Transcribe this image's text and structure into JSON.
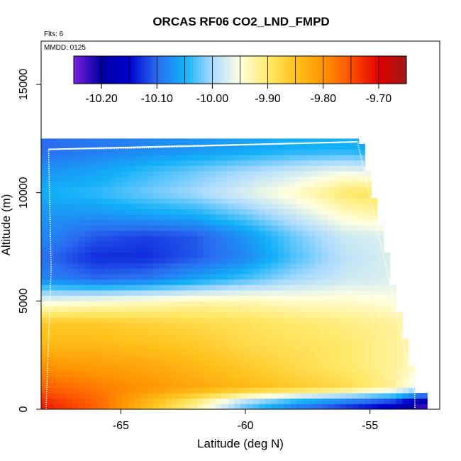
{
  "chart_data": {
    "type": "heatmap",
    "title": "ORCAS RF06 CO2_LND_FMPD",
    "annotations": [
      "Flts: 6",
      "MMDD: 0125"
    ],
    "xlabel": "Latitude (deg N)",
    "ylabel": "Altitude (m)",
    "xlim": [
      -68.2,
      -52.2
    ],
    "ylim": [
      0,
      17000
    ],
    "xticks": [
      -65,
      -60,
      -55
    ],
    "xtick_labels": [
      "-65",
      "-60",
      "-55"
    ],
    "yticks": [
      0,
      5000,
      10000,
      15000
    ],
    "ytick_labels": [
      "0",
      "5000",
      "10000",
      "15000"
    ],
    "colorbar": {
      "placement": "top-inside",
      "range": [
        -10.25,
        -9.65
      ],
      "ticks": [
        -10.2,
        -10.1,
        -10.0,
        -9.9,
        -9.8,
        -9.7
      ],
      "tick_labels": [
        "-10.20",
        "-10.10",
        "-10.00",
        "-9.90",
        "-9.80",
        "-9.70"
      ],
      "colors": [
        "#7a1fe0",
        "#0000a0",
        "#0000d0",
        "#2a6cf0",
        "#12b0f8",
        "#a9daff",
        "#ffffe0",
        "#ffe96a",
        "#ffc21a",
        "#ff9400",
        "#ff5200",
        "#e00000",
        "#a01818"
      ]
    },
    "field": {
      "description_rows": "altitude bands (m) with representative values across latitude",
      "latitudes": [
        -68,
        -66,
        -64,
        -62,
        -60,
        -58,
        -56,
        -54,
        -53
      ],
      "altitudes": [
        250,
        1000,
        2000,
        3000,
        4000,
        5000,
        6000,
        7000,
        8000,
        9000,
        10000,
        11000,
        12000
      ],
      "values": [
        [
          -9.72,
          -9.76,
          -9.84,
          -9.92,
          -10.02,
          -10.08,
          -10.12,
          -10.16,
          -10.22
        ],
        [
          -9.76,
          -9.78,
          -9.8,
          -9.82,
          -9.84,
          -9.86,
          -9.88,
          -9.92,
          -9.98
        ],
        [
          -9.8,
          -9.81,
          -9.82,
          -9.84,
          -9.86,
          -9.88,
          -9.9,
          -9.92,
          -9.94
        ],
        [
          -9.84,
          -9.84,
          -9.85,
          -9.86,
          -9.88,
          -9.89,
          -9.9,
          -9.92,
          -9.93
        ],
        [
          -9.86,
          -9.86,
          -9.87,
          -9.88,
          -9.89,
          -9.9,
          -9.91,
          -9.92,
          -9.93
        ],
        [
          -9.96,
          -9.95,
          -9.94,
          -9.93,
          -9.93,
          -9.94,
          -9.94,
          -9.95,
          -9.96
        ],
        [
          -10.08,
          -10.1,
          -10.09,
          -10.06,
          -10.03,
          -10.0,
          -9.98,
          -9.97,
          -9.97
        ],
        [
          -10.1,
          -10.13,
          -10.13,
          -10.11,
          -10.08,
          -10.03,
          -9.99,
          -9.97,
          -9.97
        ],
        [
          -10.08,
          -10.11,
          -10.12,
          -10.11,
          -10.07,
          -10.02,
          -9.98,
          -9.97,
          -9.97
        ],
        [
          -10.07,
          -10.07,
          -10.06,
          -10.05,
          -10.02,
          -9.98,
          -9.94,
          -9.92,
          -9.92
        ],
        [
          -10.05,
          -10.04,
          -10.02,
          -10.0,
          -9.97,
          -9.94,
          -9.9,
          -9.88,
          -9.9
        ],
        [
          -10.07,
          -10.06,
          -10.04,
          -10.02,
          -10.0,
          -9.98,
          -9.96,
          -9.98,
          -10.0
        ],
        [
          -10.1,
          -10.09,
          -10.08,
          -10.07,
          -10.06,
          -10.05,
          -10.05,
          -10.06,
          -10.07
        ]
      ]
    },
    "flight_track": {
      "color": "#ffffff",
      "points": [
        [
          -68.0,
          0
        ],
        [
          -67.8,
          6500
        ],
        [
          -67.9,
          12000
        ],
        [
          -64.8,
          12050
        ],
        [
          -55.5,
          12350
        ],
        [
          -53.2,
          700
        ],
        [
          -53.2,
          0
        ]
      ]
    }
  }
}
